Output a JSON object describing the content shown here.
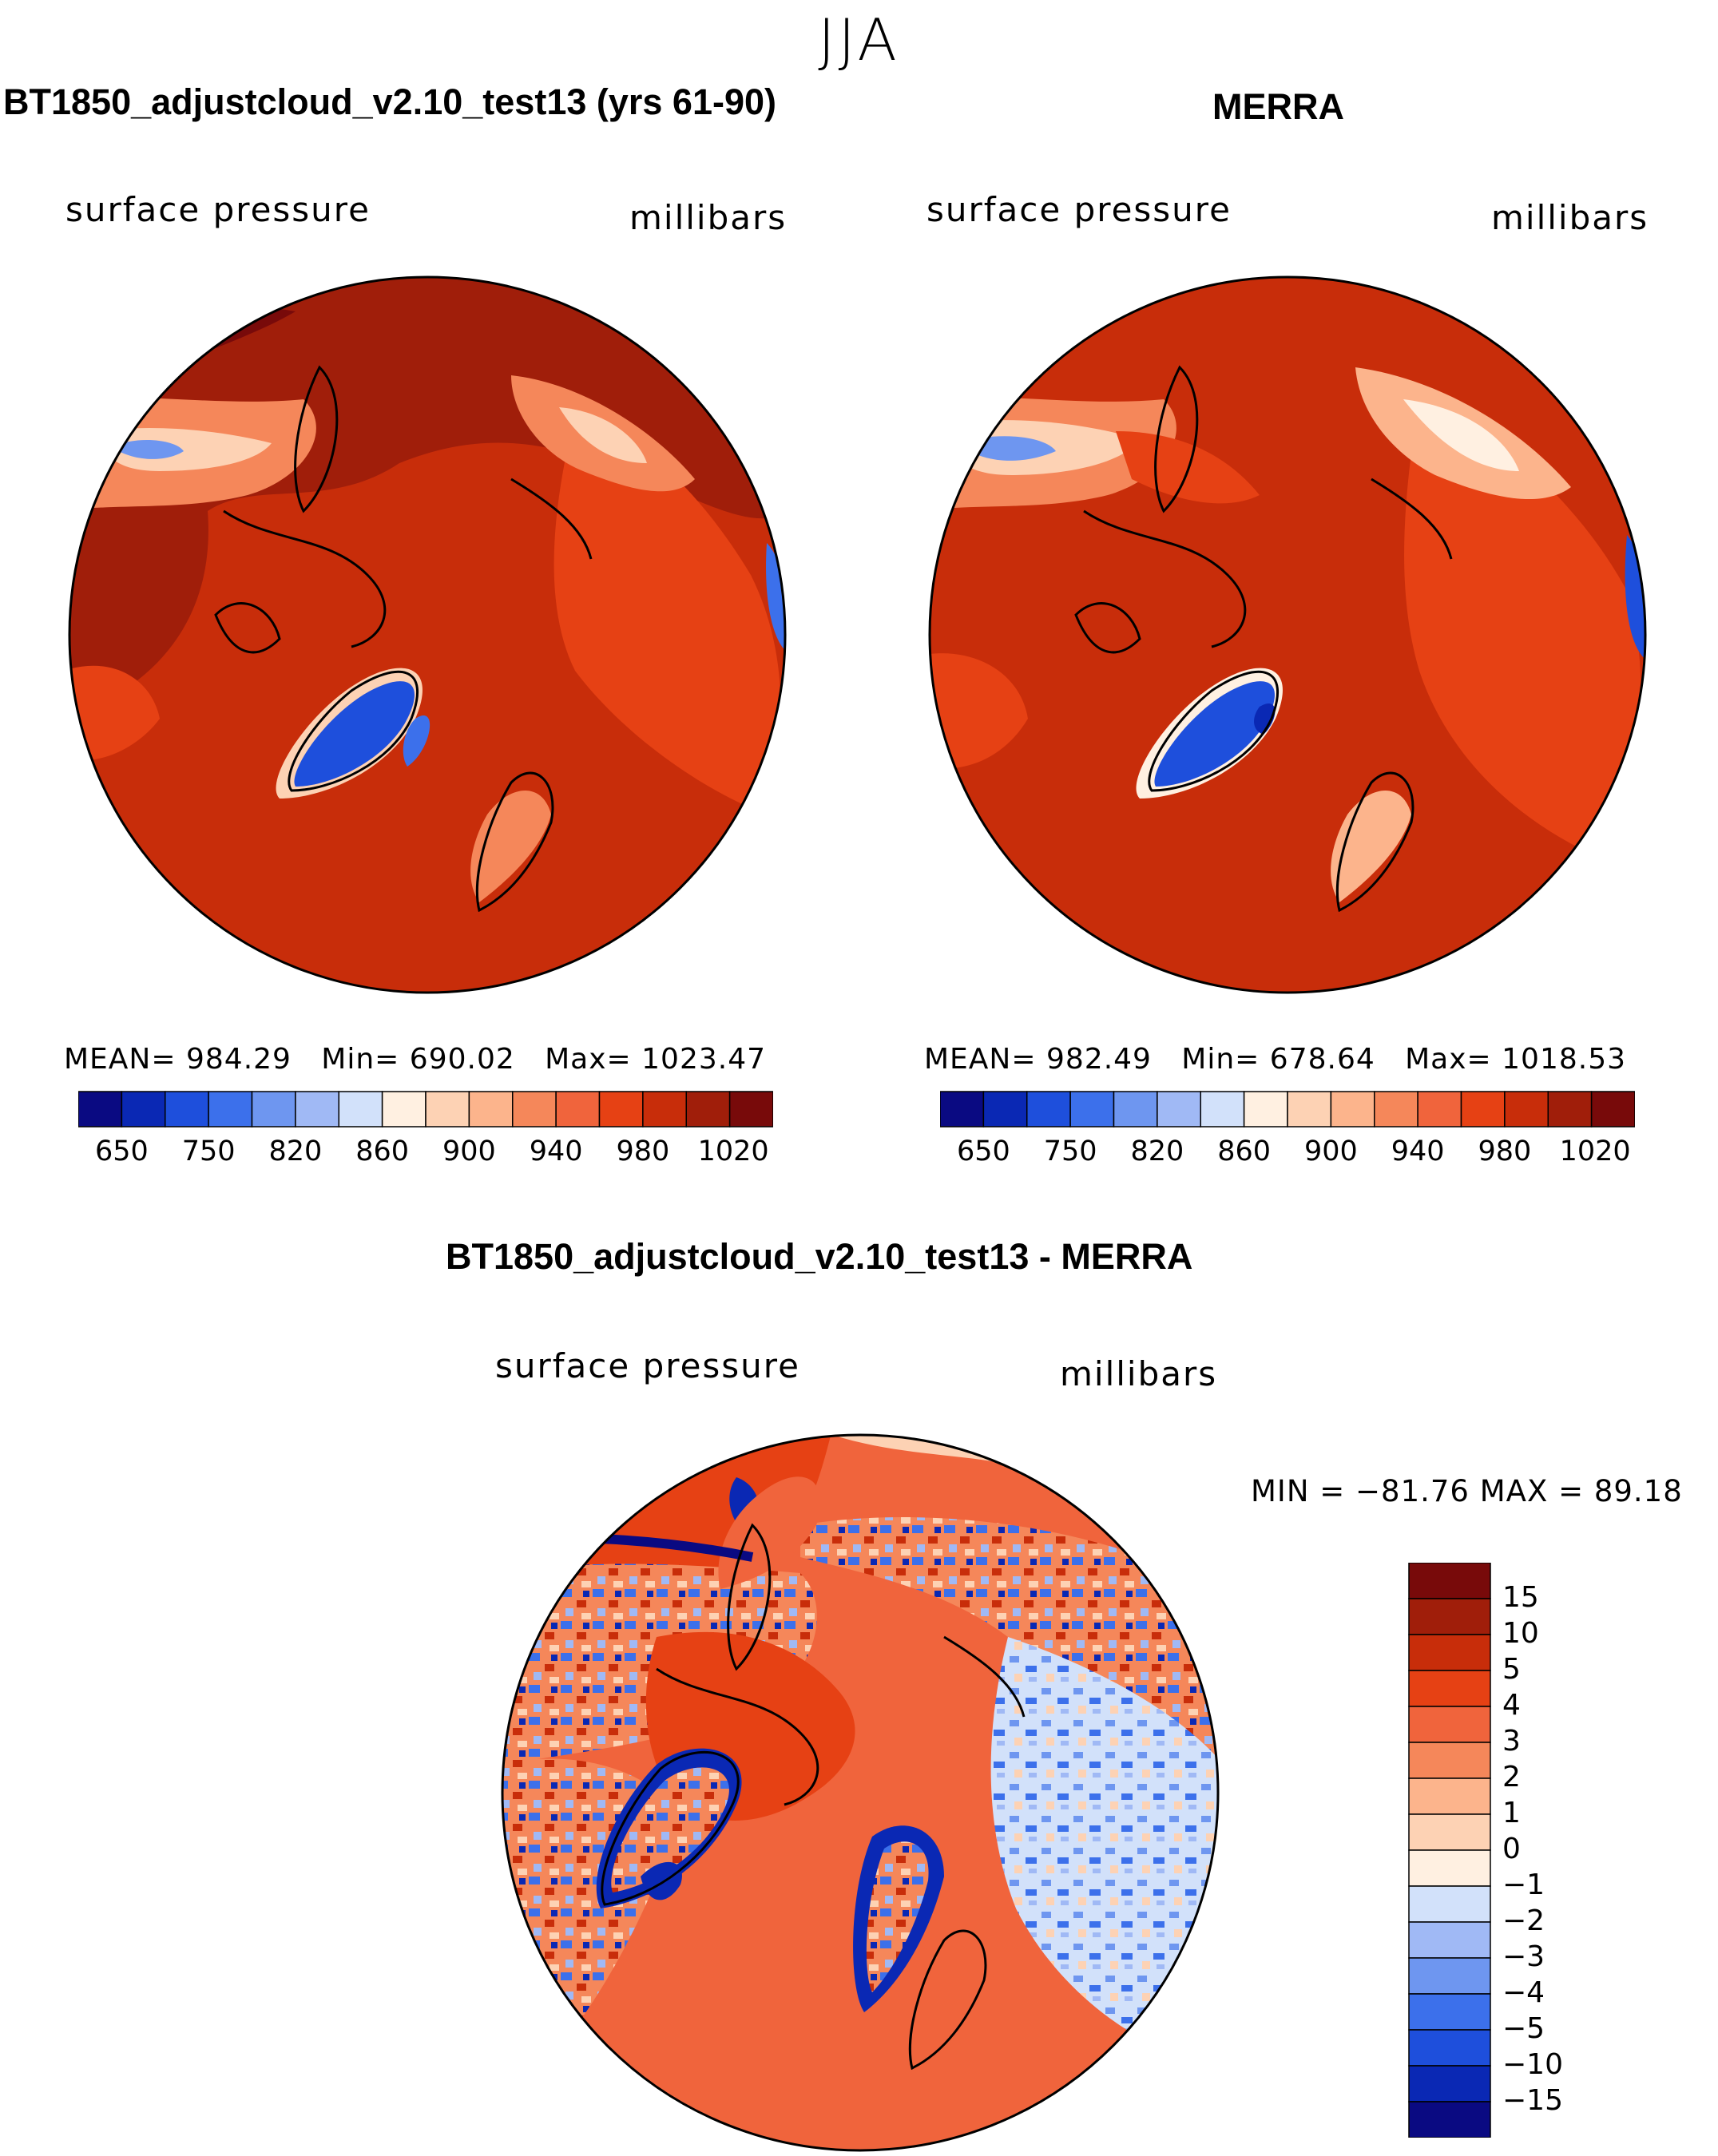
{
  "season": "JJA",
  "panels": [
    {
      "title": "BT1850_adjustcloud_v2.10_test13 (yrs 61-90)",
      "variable": "surface pressure",
      "units": "millibars",
      "stats": {
        "mean_label": "MEAN=",
        "mean": "984.29",
        "min_label": "Min=",
        "min": "690.02",
        "max_label": "Max=",
        "max": "1023.47"
      }
    },
    {
      "title": "MERRA",
      "variable": "surface pressure",
      "units": "millibars",
      "stats": {
        "mean_label": "MEAN=",
        "mean": "982.49",
        "min_label": "Min=",
        "min": "678.64",
        "max_label": "Max=",
        "max": "1018.53"
      }
    }
  ],
  "diff_panel": {
    "title": "BT1850_adjustcloud_v2.10_test13 - MERRA",
    "variable": "surface pressure",
    "units": "millibars",
    "minmax_text": "MIN = −81.76 MAX =   89.18"
  },
  "chart_data": [
    {
      "type": "heatmap",
      "projection": "north polar stereographic",
      "title": "BT1850_adjustcloud_v2.10_test13 (yrs 61-90)",
      "variable": "surface pressure",
      "units": "millibars",
      "mean": 984.29,
      "min": 690.02,
      "max": 1023.47,
      "colorbar": {
        "orientation": "horizontal",
        "levels": [
          650,
          700,
          750,
          800,
          820,
          840,
          860,
          880,
          900,
          920,
          940,
          960,
          980,
          1000,
          1020
        ],
        "tick_labels": [
          "650",
          "750",
          "820",
          "860",
          "900",
          "940",
          "980",
          "1020"
        ],
        "colors": [
          "#0a0a82",
          "#0a28b4",
          "#1e4fdc",
          "#3c70eb",
          "#6e96f0",
          "#a0b9f5",
          "#d2e1fa",
          "#fff0e1",
          "#fdd2b4",
          "#fcb48c",
          "#f5875a",
          "#f0643c",
          "#e64114",
          "#c82d0a",
          "#a01e0a",
          "#780a0a"
        ]
      }
    },
    {
      "type": "heatmap",
      "projection": "north polar stereographic",
      "title": "MERRA",
      "variable": "surface pressure",
      "units": "millibars",
      "mean": 982.49,
      "min": 678.64,
      "max": 1018.53,
      "colorbar": {
        "orientation": "horizontal",
        "levels": [
          650,
          700,
          750,
          800,
          820,
          840,
          860,
          880,
          900,
          920,
          940,
          960,
          980,
          1000,
          1020
        ],
        "tick_labels": [
          "650",
          "750",
          "820",
          "860",
          "900",
          "940",
          "980",
          "1020"
        ],
        "colors": [
          "#0a0a82",
          "#0a28b4",
          "#1e4fdc",
          "#3c70eb",
          "#6e96f0",
          "#a0b9f5",
          "#d2e1fa",
          "#fff0e1",
          "#fdd2b4",
          "#fcb48c",
          "#f5875a",
          "#f0643c",
          "#e64114",
          "#c82d0a",
          "#a01e0a",
          "#780a0a"
        ]
      }
    },
    {
      "type": "heatmap",
      "projection": "north polar stereographic",
      "title": "BT1850_adjustcloud_v2.10_test13 - MERRA",
      "variable": "surface pressure",
      "units": "millibars",
      "min": -81.76,
      "max": 89.18,
      "colorbar": {
        "orientation": "vertical",
        "levels": [
          -15,
          -10,
          -5,
          -4,
          -3,
          -2,
          -1,
          0,
          1,
          2,
          3,
          4,
          5,
          10,
          15
        ],
        "tick_labels": [
          "15",
          "10",
          "5",
          "4",
          "3",
          "2",
          "1",
          "0",
          "−1",
          "−2",
          "−3",
          "−4",
          "−5",
          "−10",
          "−15"
        ],
        "colors_top_to_bottom": [
          "#780a0a",
          "#a01e0a",
          "#c82d0a",
          "#e64114",
          "#f0643c",
          "#f5875a",
          "#fcb48c",
          "#fdd2b4",
          "#fff0e1",
          "#d2e1fa",
          "#a0b9f5",
          "#6e96f0",
          "#3c70eb",
          "#1e4fdc",
          "#0a28b4",
          "#0a0a82"
        ]
      }
    }
  ]
}
